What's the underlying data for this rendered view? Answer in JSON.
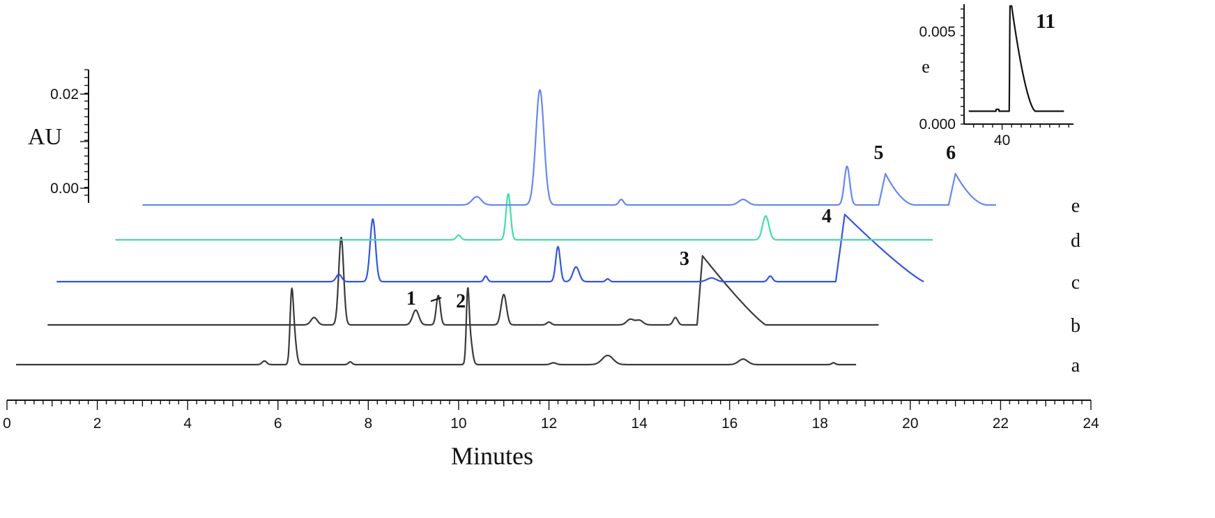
{
  "chart_data": [
    {
      "type": "line",
      "xlabel": "Minutes",
      "ylabel": "AU",
      "xlim": [
        0,
        24
      ],
      "x_ticks": [
        "0",
        "2",
        "4",
        "6",
        "8",
        "10",
        "12",
        "14",
        "16",
        "18",
        "20",
        "22",
        "24"
      ],
      "y_ticks": [
        "0.02",
        "0.00"
      ],
      "ylim": [
        0,
        0.02
      ],
      "series": [
        {
          "name": "a",
          "color": "#3a3a3a",
          "x_start": 0.2,
          "x_end": 18.8,
          "peaks": [
            {
              "x": 5.7,
              "h": 0.4,
              "w": 0.05
            },
            {
              "x": 6.3,
              "h": 6.0,
              "w": 0.035
            },
            {
              "x": 6.35,
              "h": 3.5,
              "w": 0.05
            },
            {
              "x": 7.6,
              "h": 0.3,
              "w": 0.04
            },
            {
              "x": 10.2,
              "h": 6.5,
              "w": 0.03
            },
            {
              "x": 10.25,
              "h": 3.0,
              "w": 0.05
            },
            {
              "x": 12.1,
              "h": 0.2,
              "w": 0.06
            },
            {
              "x": 13.3,
              "h": 1.0,
              "w": 0.12
            },
            {
              "x": 16.3,
              "h": 0.6,
              "w": 0.1
            },
            {
              "x": 18.3,
              "h": 0.2,
              "w": 0.04
            }
          ]
        },
        {
          "name": "b",
          "color": "#3a3a3a",
          "x_start": 0.9,
          "x_end": 19.3,
          "peaks": [
            {
              "x": 6.8,
              "h": 0.8,
              "w": 0.07
            },
            {
              "x": 7.4,
              "h": 9.5,
              "w": 0.055
            },
            {
              "x": 9.05,
              "h": 1.6,
              "w": 0.07
            },
            {
              "x": 9.55,
              "h": 3.2,
              "w": 0.045
            },
            {
              "x": 11.0,
              "h": 3.3,
              "w": 0.06
            },
            {
              "x": 12.0,
              "h": 0.3,
              "w": 0.05
            },
            {
              "x": 13.8,
              "h": 0.6,
              "w": 0.08
            },
            {
              "x": 14.0,
              "h": 0.5,
              "w": 0.08
            },
            {
              "x": 14.8,
              "h": 0.8,
              "w": 0.05
            }
          ],
          "tailing": {
            "x0": 15.28,
            "x_peak": 15.4,
            "h": 7.5,
            "x_end": 16.8
          }
        },
        {
          "name": "c",
          "color": "#3355dd",
          "x_start": 1.1,
          "x_end": 20.3,
          "peaks": [
            {
              "x": 7.35,
              "h": 0.8,
              "w": 0.06
            },
            {
              "x": 8.1,
              "h": 6.8,
              "w": 0.06
            },
            {
              "x": 10.6,
              "h": 0.6,
              "w": 0.04
            },
            {
              "x": 12.2,
              "h": 3.8,
              "w": 0.05
            },
            {
              "x": 12.6,
              "h": 1.6,
              "w": 0.07
            },
            {
              "x": 13.3,
              "h": 0.3,
              "w": 0.04
            },
            {
              "x": 15.6,
              "h": 0.4,
              "w": 0.1
            },
            {
              "x": 16.9,
              "h": 0.6,
              "w": 0.05
            }
          ],
          "tailing": {
            "x0": 18.35,
            "x_peak": 18.55,
            "h": 7.3,
            "x_end": 20.3
          }
        },
        {
          "name": "d",
          "color": "#44ddaa",
          "x_start": 2.4,
          "x_end": 20.5,
          "peaks": [
            {
              "x": 10.0,
              "h": 0.5,
              "w": 0.05
            },
            {
              "x": 11.1,
              "h": 5.0,
              "w": 0.05
            },
            {
              "x": 16.8,
              "h": 2.6,
              "w": 0.07
            }
          ]
        },
        {
          "name": "e",
          "color": "#6688ee",
          "x_start": 3.0,
          "x_end": 21.9,
          "peaks": [
            {
              "x": 10.4,
              "h": 0.9,
              "w": 0.1
            },
            {
              "x": 11.8,
              "h": 12.5,
              "w": 0.09
            },
            {
              "x": 13.6,
              "h": 0.6,
              "w": 0.05
            },
            {
              "x": 16.3,
              "h": 0.6,
              "w": 0.1
            },
            {
              "x": 18.6,
              "h": 4.2,
              "w": 0.06
            }
          ],
          "shoulders": [
            {
              "x0": 19.3,
              "x_peak": 19.45,
              "h": 3.4,
              "x_end": 20.1
            },
            {
              "x0": 20.85,
              "x_peak": 21.0,
              "h": 3.4,
              "x_end": 21.7
            }
          ]
        }
      ],
      "trace_labels": [
        "a",
        "b",
        "c",
        "d",
        "e"
      ],
      "peak_labels": [
        {
          "text": "1",
          "series": "b",
          "x": 8.95
        },
        {
          "text": "2",
          "series": "b",
          "x": 10.05
        },
        {
          "text": "3",
          "series": "c",
          "x": 15.0
        },
        {
          "text": "4",
          "series": "d",
          "x": 18.15
        },
        {
          "text": "5",
          "series": "e",
          "x": 19.3
        },
        {
          "text": "6",
          "series": "e",
          "x": 20.9
        }
      ]
    },
    {
      "type": "line",
      "name": "inset",
      "ylabel": "e",
      "x_ticks": [
        "40"
      ],
      "y_ticks": [
        "0.005",
        "0.000"
      ],
      "xlim": [
        32,
        55
      ],
      "ylim": [
        0,
        0.0065
      ],
      "series": [
        {
          "name": "e",
          "color": "#111111",
          "baseline": 0.0007,
          "x_start": 33,
          "x_end": 53,
          "jump_x": 41.5,
          "peak_x": 42.0,
          "peak_y": 0.0064,
          "tail_end": 47
        }
      ],
      "peak_label": "11"
    }
  ]
}
